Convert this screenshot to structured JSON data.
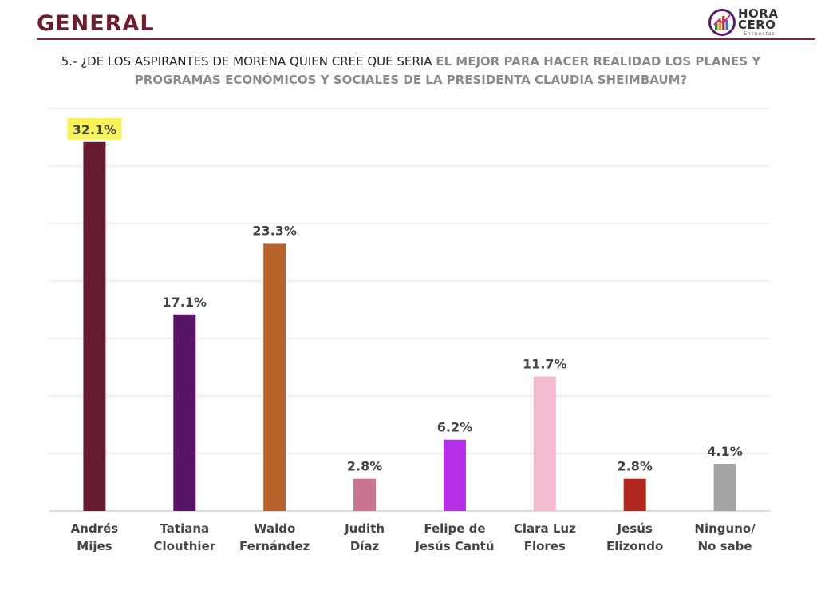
{
  "header": {
    "title": "GENERAL",
    "logo_line1": "HORA",
    "logo_line2": "CERO",
    "logo_sub": "Encuestas"
  },
  "question": {
    "prefix": "5.- ¿DE LOS ASPIRANTES DE MORENA QUIEN CREE QUE SERIA ",
    "highlight": "EL MEJOR PARA HACER REALIDAD LOS PLANES Y PROGRAMAS ECONÓMICOS Y SOCIALES DE LA PRESIDENTA CLAUDIA SHEIMBAUM?"
  },
  "colors": {
    "title": "#6b1d2c",
    "highlight_label_bg": "#f7f25a",
    "gridline": "#dddddd"
  },
  "chart_data": {
    "type": "bar",
    "categories": [
      [
        "Andrés",
        "Mijes"
      ],
      [
        "Tatiana",
        "Clouthier"
      ],
      [
        "Waldo",
        "Fernández"
      ],
      [
        "Judith",
        "Díaz"
      ],
      [
        "Felipe de",
        "Jesús Cantú"
      ],
      [
        "Clara Luz",
        "Flores"
      ],
      [
        "Jesús",
        "Elizondo"
      ],
      [
        "Ninguno/",
        "No sabe"
      ]
    ],
    "values": [
      32.1,
      17.1,
      23.3,
      2.8,
      6.2,
      11.7,
      2.8,
      4.1
    ],
    "labels": [
      "32.1%",
      "17.1%",
      "23.3%",
      "2.8%",
      "6.2%",
      "11.7%",
      "2.8%",
      "4.1%"
    ],
    "colors": [
      "#661a2e",
      "#571568",
      "#b8622b",
      "#c97591",
      "#b52fe6",
      "#f4bad0",
      "#b1271e",
      "#a5a5a5"
    ],
    "highlighted_index": 0,
    "ylim": [
      0,
      35
    ],
    "grid": true,
    "title": "",
    "xlabel": "",
    "ylabel": ""
  }
}
